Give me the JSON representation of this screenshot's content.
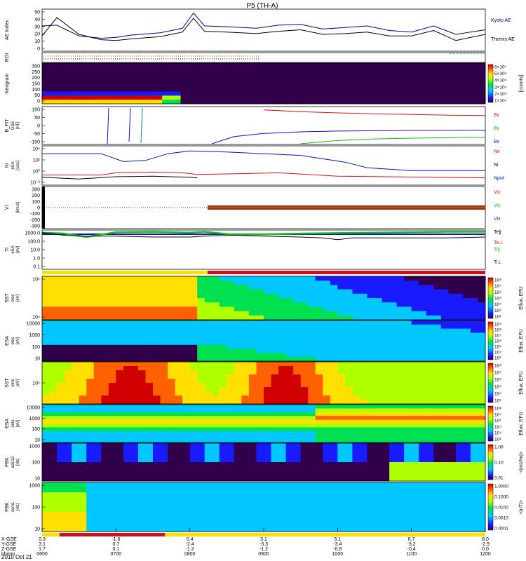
{
  "title": "P5 (TH-A)",
  "date_label": "2010 Oct 21",
  "colors": {
    "kyoto": "#00008b",
    "themis": "#000000",
    "red": "#e01010",
    "green": "#10c010",
    "blue": "#1010d0",
    "roi_bar": "#ffe000"
  },
  "chart_data": {
    "type": "line",
    "x_axis": {
      "range": [
        "06:00",
        "12:00"
      ],
      "ticks": [
        {
          "hhmm": "0600",
          "x_gse": "0.3",
          "y_gse": "3.1",
          "z_gse": "1.7"
        },
        {
          "hhmm": "0700",
          "x_gse": "-1.6",
          "y_gse": "0.7",
          "z_gse": "0.1"
        },
        {
          "hhmm": "0800",
          "x_gse": "0.4",
          "y_gse": "-2.4",
          "z_gse": "-1.2"
        },
        {
          "hhmm": "0900",
          "x_gse": "3.1",
          "y_gse": "-3.3",
          "z_gse": "-1.2"
        },
        {
          "hhmm": "1000",
          "x_gse": "5.1",
          "y_gse": "-3.4",
          "z_gse": "-0.8"
        },
        {
          "hhmm": "1100",
          "x_gse": "6.7",
          "y_gse": "-3.2",
          "z_gse": "-0.4"
        },
        {
          "hhmm": "1200",
          "x_gse": "8.0",
          "y_gse": "-2.9",
          "z_gse": "0.0"
        }
      ],
      "row_labels": [
        "X-GSE",
        "Y-GSE",
        "Z-GSE",
        "hhmm"
      ]
    },
    "panels": [
      {
        "id": "ae",
        "ylabel": "AE Index",
        "ticks": [
          "50",
          "40",
          "30",
          "20",
          "10",
          "0"
        ],
        "series": [
          {
            "name": "Kyoto AE",
            "x": [
              6.0,
              6.2,
              6.5,
              6.8,
              7.0,
              7.2,
              7.6,
              7.9,
              8.05,
              8.2,
              8.5,
              8.9,
              9.2,
              9.5,
              9.8,
              10.1,
              10.4,
              10.7,
              11.0,
              11.3,
              11.6,
              12.0
            ],
            "y": [
              33,
              34,
              20,
              17,
              18,
              21,
              24,
              30,
              50,
              33,
              32,
              30,
              34,
              35,
              29,
              31,
              33,
              27,
              25,
              33,
              22,
              28
            ]
          },
          {
            "name": "Themis AE",
            "x": [
              6.0,
              6.2,
              6.5,
              6.8,
              7.0,
              7.2,
              7.6,
              7.9,
              8.05,
              8.2,
              8.5,
              8.9,
              9.2,
              9.5,
              9.8,
              10.1,
              10.4,
              10.7,
              11.0,
              11.3,
              11.6,
              12.0
            ],
            "y": [
              20,
              44,
              22,
              15,
              14,
              16,
              19,
              25,
              43,
              26,
              25,
              23,
              26,
              28,
              22,
              23,
              25,
              20,
              20,
              27,
              14,
              22
            ]
          }
        ]
      },
      {
        "id": "roi",
        "ylabel": "ROI"
      },
      {
        "id": "keogram",
        "ylabel": "Keogram",
        "ticks": [
          "300",
          "250",
          "200",
          "150",
          "100",
          "50",
          "0"
        ],
        "colorbar": {
          "label": "[counts]",
          "ticks": [
            "6×10⁴",
            "5×10⁴",
            "4×10⁴",
            "3×10⁴",
            "2×10⁴",
            "1×10⁴"
          ]
        }
      },
      {
        "id": "bfit",
        "ylabel": "B_FIT",
        "sub": "GSE",
        "units": "[nT]",
        "ticks": [
          "100",
          "50",
          "0",
          "-50",
          "-100"
        ],
        "series": [
          {
            "name": "Bz",
            "x": [
              9.0,
              9.5,
              10.0,
              10.5,
              11.0,
              11.5,
              12.0
            ],
            "y": [
              99,
              88,
              80,
              74,
              70,
              66,
              63
            ]
          },
          {
            "name": "By",
            "x": [
              9.5,
              10.0,
              10.5,
              11.0,
              11.5,
              12.0
            ],
            "y": [
              -115,
              -95,
              -85,
              -80,
              -77,
              -75
            ]
          },
          {
            "name": "Bx",
            "x": [
              8.3,
              8.6,
              9.0,
              9.5,
              10.0,
              10.5,
              11.0,
              12.0
            ],
            "y": [
              -115,
              -70,
              -50,
              -40,
              -35,
              -33,
              -31,
              -30
            ]
          }
        ]
      },
      {
        "id": "ni",
        "ylabel": "Ni",
        "sub": "eSA",
        "units": "[1/cc]",
        "ticks": [
          "10⁴",
          "10²",
          "10⁰",
          "10⁻²"
        ],
        "series": [
          {
            "name": "Ne",
            "x": [
              6.0,
              6.8,
              7.0,
              7.5,
              7.9,
              8.1,
              8.5,
              9.2,
              9.6,
              10.0,
              12.0
            ],
            "y": [
              -0.3,
              -0.3,
              0.1,
              0.2,
              0.1,
              -0.2,
              -0.1,
              0.1,
              -0.2,
              -0.5,
              -0.8
            ]
          },
          {
            "name": "Ni",
            "x": [
              6.0,
              6.8,
              7.1,
              7.4,
              7.7,
              8.0,
              8.5,
              9.5,
              10.1,
              10.4,
              11.0,
              12.0
            ],
            "y": [
              3.5,
              3.5,
              2.1,
              2.3,
              3.5,
              4.0,
              3.8,
              3.2,
              2.0,
              1.0,
              0.5,
              0.5
            ]
          },
          {
            "name": "Npot",
            "x": [
              6.0,
              6.5,
              7.0,
              7.5,
              8.0,
              8.1
            ],
            "y": [
              -0.7,
              -1.0,
              -0.6,
              -0.5,
              -0.7,
              -0.8
            ]
          }
        ]
      },
      {
        "id": "vi",
        "ylabel": "Vi",
        "units": "[km/s]",
        "ticks": [
          "300",
          "200",
          "100",
          "0",
          "-100",
          "-200",
          "-300"
        ],
        "series": [
          {
            "name": "Viz"
          },
          {
            "name": "Viy"
          },
          {
            "name": "Vix"
          }
        ]
      },
      {
        "id": "ti",
        "ylabel": "Ti",
        "sub": "eSA",
        "units": "[eV]",
        "ticks": [
          "1000.0",
          "100.0",
          "10.0",
          "1.0",
          "0.1"
        ],
        "series": [
          {
            "name": "Te∥",
            "x": [
              6.0,
              6.3,
              6.6,
              7.0,
              7.5,
              8.0,
              8.2,
              8.6,
              9.0,
              9.5,
              9.8,
              10.0,
              10.2,
              10.5,
              11.0,
              11.5,
              12.0
            ],
            "y": [
              2.9,
              2.6,
              2.5,
              2.5,
              2.4,
              2.4,
              2.5,
              2.6,
              2.5,
              2.4,
              2.3,
              2.1,
              2.3,
              2.3,
              2.3,
              2.3,
              2.4
            ]
          },
          {
            "name": "Te⊥",
            "x": [
              6.0,
              12.0
            ],
            "y": [
              2.95,
              3.0
            ]
          },
          {
            "name": "Ti∥",
            "x": [
              6.0,
              6.3,
              6.6,
              7.0,
              7.5,
              8.0,
              8.2,
              8.6,
              9.0,
              9.5,
              10.0,
              10.5,
              11.0,
              11.5,
              12.0
            ],
            "y": [
              2.9,
              2.8,
              2.4,
              2.95,
              3.0,
              2.9,
              3.0,
              2.65,
              2.7,
              2.8,
              2.85,
              2.9,
              2.95,
              3.0,
              3.0
            ]
          },
          {
            "name": "Ti⊥"
          }
        ]
      },
      {
        "id": "sst_e",
        "ylabel": "SST",
        "sub": "elec",
        "units": "[eV]",
        "ticks": [
          "10⁵",
          "10⁴"
        ],
        "colorbar": {
          "label": "Eflux, EFU",
          "ticks": [
            "10⁸",
            "10⁷",
            "10⁶",
            "10⁵",
            "10⁴",
            "10³",
            "10²"
          ]
        }
      },
      {
        "id": "esa_e",
        "ylabel": "ESA",
        "sub": "elec",
        "units": "[eV]",
        "ticks": [
          "10000",
          "1000",
          "100",
          "10"
        ],
        "colorbar": {
          "label": "Eflux, EFU",
          "ticks": [
            "10⁹",
            "10⁸",
            "10⁷",
            "10⁶",
            "10⁵",
            "10⁴",
            "10³"
          ]
        }
      },
      {
        "id": "sst_i",
        "ylabel": "SST",
        "sub": "ions",
        "units": "[eV]",
        "ticks": [
          "10⁵"
        ],
        "colorbar": {
          "label": "Eflux, EFU",
          "ticks": [
            "10⁸",
            "10⁷",
            "10⁶",
            "10⁵",
            "10⁴",
            "10³"
          ]
        }
      },
      {
        "id": "esa_i",
        "ylabel": "ESA",
        "sub": "ions",
        "units": "[eV]",
        "ticks": [
          "10000",
          "1000",
          "100",
          "10"
        ],
        "colorbar": {
          "label": "Eflux, EFU",
          "ticks": [
            "10⁸",
            "10⁷",
            "10⁶",
            "10⁵",
            "10⁴",
            "10³"
          ]
        }
      },
      {
        "id": "fbk_scm",
        "ylabel": "FBK",
        "sub": "edc12",
        "units": "[Hz]",
        "ticks": [
          "1000",
          "100",
          "10"
        ],
        "colorbar": {
          "label": "<|mV/m|>",
          "ticks": [
            "1.00",
            "0.10",
            "0.01"
          ]
        }
      },
      {
        "id": "fbk_b",
        "ylabel": "FBK",
        "sub": "scm1",
        "units": "[Hz]",
        "ticks": [
          "1000",
          "100",
          "10"
        ],
        "colorbar": {
          "label": "<|nT|>",
          "ticks": [
            "1.0000",
            "0.1000",
            "0.0100",
            "0.0010",
            "0.0001"
          ]
        }
      }
    ]
  }
}
